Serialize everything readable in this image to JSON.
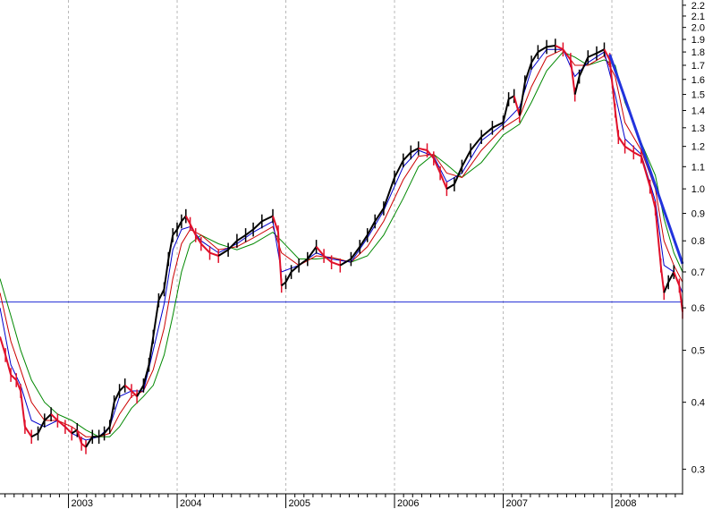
{
  "chart_data": {
    "type": "line",
    "scale": "log",
    "ylim": [
      0.27,
      2.25
    ],
    "xlim": [
      2002.37,
      2008.65
    ],
    "grid": {
      "vertical_dashed_at_years": true,
      "horizontal": false
    },
    "y_ticks": [
      {
        "value": 2.2,
        "label": "2.2"
      },
      {
        "value": 2.1,
        "label": "2.1"
      },
      {
        "value": 2.0,
        "label": "2.0"
      },
      {
        "value": 1.9,
        "label": "1.9"
      },
      {
        "value": 1.8,
        "label": "1.8"
      },
      {
        "value": 1.7,
        "label": "1.7"
      },
      {
        "value": 1.6,
        "label": "1.6"
      },
      {
        "value": 1.5,
        "label": "1.5"
      },
      {
        "value": 1.4,
        "label": "1.4"
      },
      {
        "value": 1.3,
        "label": "1.3"
      },
      {
        "value": 1.2,
        "label": "1.2"
      },
      {
        "value": 1.1,
        "label": "1.1"
      },
      {
        "value": 1.0,
        "label": "1.0"
      },
      {
        "value": 0.9,
        "label": "0.9"
      },
      {
        "value": 0.8,
        "label": "0.8"
      },
      {
        "value": 0.7,
        "label": "0.7"
      },
      {
        "value": 0.6,
        "label": "0.6"
      },
      {
        "value": 0.5,
        "label": "0.5"
      },
      {
        "value": 0.4,
        "label": "0.4"
      },
      {
        "value": 0.3,
        "label": "0.3"
      }
    ],
    "x_years": [
      {
        "value": 2003,
        "label": "2003"
      },
      {
        "value": 2004,
        "label": "2004"
      },
      {
        "value": 2005,
        "label": "2005"
      },
      {
        "value": 2006,
        "label": "2006"
      },
      {
        "value": 2007,
        "label": "2007"
      },
      {
        "value": 2008,
        "label": "2008"
      }
    ],
    "horizontal_line": {
      "value": 0.615,
      "color": "#1f2bd6"
    },
    "trend_line": {
      "points": [
        [
          2007.98,
          1.78
        ],
        [
          2008.65,
          0.725
        ]
      ],
      "color": "#2233dd"
    },
    "colors": {
      "price_up": "#000000",
      "price_down": "#e0102a",
      "ma_short": "#0000cc",
      "ma_mid": "#cc0000",
      "ma_long": "#008800"
    },
    "series": [
      {
        "type": "price",
        "values": [
          [
            2002.37,
            0.53
          ],
          [
            2002.42,
            0.49
          ],
          [
            2002.47,
            0.45
          ],
          [
            2002.52,
            0.44
          ],
          [
            2002.56,
            0.42
          ],
          [
            2002.6,
            0.36
          ],
          [
            2002.66,
            0.345
          ],
          [
            2002.72,
            0.35
          ],
          [
            2002.78,
            0.37
          ],
          [
            2002.84,
            0.38
          ],
          [
            2002.9,
            0.37
          ],
          [
            2002.97,
            0.36
          ],
          [
            2003.03,
            0.35
          ],
          [
            2003.08,
            0.355
          ],
          [
            2003.12,
            0.335
          ],
          [
            2003.16,
            0.33
          ],
          [
            2003.22,
            0.345
          ],
          [
            2003.28,
            0.345
          ],
          [
            2003.33,
            0.35
          ],
          [
            2003.38,
            0.36
          ],
          [
            2003.42,
            0.4
          ],
          [
            2003.47,
            0.42
          ],
          [
            2003.52,
            0.43
          ],
          [
            2003.58,
            0.42
          ],
          [
            2003.63,
            0.41
          ],
          [
            2003.69,
            0.43
          ],
          [
            2003.74,
            0.47
          ],
          [
            2003.78,
            0.53
          ],
          [
            2003.83,
            0.62
          ],
          [
            2003.88,
            0.65
          ],
          [
            2003.92,
            0.74
          ],
          [
            2003.96,
            0.82
          ],
          [
            2004.0,
            0.84
          ],
          [
            2004.04,
            0.87
          ],
          [
            2004.08,
            0.89
          ],
          [
            2004.12,
            0.86
          ],
          [
            2004.17,
            0.82
          ],
          [
            2004.22,
            0.79
          ],
          [
            2004.3,
            0.76
          ],
          [
            2004.38,
            0.75
          ],
          [
            2004.47,
            0.77
          ],
          [
            2004.55,
            0.8
          ],
          [
            2004.63,
            0.82
          ],
          [
            2004.7,
            0.84
          ],
          [
            2004.78,
            0.87
          ],
          [
            2004.88,
            0.89
          ],
          [
            2004.93,
            0.83
          ],
          [
            2004.96,
            0.66
          ],
          [
            2005.0,
            0.67
          ],
          [
            2005.05,
            0.7
          ],
          [
            2005.12,
            0.72
          ],
          [
            2005.2,
            0.74
          ],
          [
            2005.28,
            0.78
          ],
          [
            2005.35,
            0.75
          ],
          [
            2005.42,
            0.73
          ],
          [
            2005.5,
            0.72
          ],
          [
            2005.6,
            0.74
          ],
          [
            2005.68,
            0.78
          ],
          [
            2005.75,
            0.82
          ],
          [
            2005.82,
            0.87
          ],
          [
            2005.9,
            0.92
          ],
          [
            2006.0,
            1.05
          ],
          [
            2006.08,
            1.13
          ],
          [
            2006.15,
            1.17
          ],
          [
            2006.22,
            1.19
          ],
          [
            2006.3,
            1.18
          ],
          [
            2006.36,
            1.14
          ],
          [
            2006.42,
            1.07
          ],
          [
            2006.48,
            1.0
          ],
          [
            2006.55,
            1.02
          ],
          [
            2006.62,
            1.1
          ],
          [
            2006.7,
            1.18
          ],
          [
            2006.8,
            1.25
          ],
          [
            2006.9,
            1.3
          ],
          [
            2007.0,
            1.33
          ],
          [
            2007.05,
            1.47
          ],
          [
            2007.1,
            1.49
          ],
          [
            2007.15,
            1.37
          ],
          [
            2007.2,
            1.58
          ],
          [
            2007.26,
            1.72
          ],
          [
            2007.32,
            1.8
          ],
          [
            2007.4,
            1.84
          ],
          [
            2007.48,
            1.85
          ],
          [
            2007.55,
            1.82
          ],
          [
            2007.62,
            1.74
          ],
          [
            2007.66,
            1.5
          ],
          [
            2007.7,
            1.62
          ],
          [
            2007.78,
            1.76
          ],
          [
            2007.86,
            1.79
          ],
          [
            2007.93,
            1.82
          ],
          [
            2007.98,
            1.74
          ],
          [
            2008.03,
            1.4
          ],
          [
            2008.06,
            1.25
          ],
          [
            2008.12,
            1.2
          ],
          [
            2008.2,
            1.17
          ],
          [
            2008.27,
            1.15
          ],
          [
            2008.35,
            1.01
          ],
          [
            2008.4,
            0.92
          ],
          [
            2008.45,
            0.72
          ],
          [
            2008.48,
            0.64
          ],
          [
            2008.52,
            0.67
          ],
          [
            2008.57,
            0.7
          ],
          [
            2008.62,
            0.66
          ],
          [
            2008.65,
            0.59
          ]
        ]
      },
      {
        "type": "ma_short",
        "values": [
          [
            2002.37,
            0.6
          ],
          [
            2002.47,
            0.47
          ],
          [
            2002.56,
            0.43
          ],
          [
            2002.66,
            0.37
          ],
          [
            2002.78,
            0.36
          ],
          [
            2002.9,
            0.37
          ],
          [
            2003.03,
            0.35
          ],
          [
            2003.16,
            0.34
          ],
          [
            2003.28,
            0.345
          ],
          [
            2003.38,
            0.36
          ],
          [
            2003.47,
            0.41
          ],
          [
            2003.58,
            0.42
          ],
          [
            2003.69,
            0.42
          ],
          [
            2003.78,
            0.5
          ],
          [
            2003.88,
            0.61
          ],
          [
            2003.96,
            0.77
          ],
          [
            2004.04,
            0.84
          ],
          [
            2004.12,
            0.85
          ],
          [
            2004.22,
            0.8
          ],
          [
            2004.38,
            0.76
          ],
          [
            2004.55,
            0.79
          ],
          [
            2004.7,
            0.83
          ],
          [
            2004.88,
            0.87
          ],
          [
            2004.96,
            0.7
          ],
          [
            2005.12,
            0.72
          ],
          [
            2005.28,
            0.76
          ],
          [
            2005.42,
            0.74
          ],
          [
            2005.6,
            0.73
          ],
          [
            2005.75,
            0.81
          ],
          [
            2005.9,
            0.91
          ],
          [
            2006.08,
            1.1
          ],
          [
            2006.22,
            1.18
          ],
          [
            2006.36,
            1.15
          ],
          [
            2006.48,
            1.03
          ],
          [
            2006.62,
            1.07
          ],
          [
            2006.8,
            1.23
          ],
          [
            2007.0,
            1.32
          ],
          [
            2007.15,
            1.42
          ],
          [
            2007.26,
            1.67
          ],
          [
            2007.4,
            1.82
          ],
          [
            2007.55,
            1.82
          ],
          [
            2007.66,
            1.62
          ],
          [
            2007.78,
            1.72
          ],
          [
            2007.93,
            1.8
          ],
          [
            2008.03,
            1.5
          ],
          [
            2008.12,
            1.24
          ],
          [
            2008.27,
            1.16
          ],
          [
            2008.4,
            0.95
          ],
          [
            2008.48,
            0.72
          ],
          [
            2008.57,
            0.7
          ],
          [
            2008.65,
            0.64
          ]
        ]
      },
      {
        "type": "ma_mid",
        "values": [
          [
            2002.37,
            0.64
          ],
          [
            2002.47,
            0.52
          ],
          [
            2002.56,
            0.46
          ],
          [
            2002.66,
            0.4
          ],
          [
            2002.78,
            0.37
          ],
          [
            2002.9,
            0.37
          ],
          [
            2003.03,
            0.36
          ],
          [
            2003.16,
            0.345
          ],
          [
            2003.28,
            0.345
          ],
          [
            2003.38,
            0.35
          ],
          [
            2003.47,
            0.38
          ],
          [
            2003.58,
            0.41
          ],
          [
            2003.69,
            0.42
          ],
          [
            2003.78,
            0.46
          ],
          [
            2003.88,
            0.55
          ],
          [
            2003.96,
            0.68
          ],
          [
            2004.04,
            0.79
          ],
          [
            2004.12,
            0.84
          ],
          [
            2004.22,
            0.82
          ],
          [
            2004.38,
            0.77
          ],
          [
            2004.55,
            0.78
          ],
          [
            2004.7,
            0.81
          ],
          [
            2004.88,
            0.85
          ],
          [
            2004.96,
            0.76
          ],
          [
            2005.12,
            0.72
          ],
          [
            2005.28,
            0.75
          ],
          [
            2005.42,
            0.745
          ],
          [
            2005.6,
            0.73
          ],
          [
            2005.75,
            0.78
          ],
          [
            2005.9,
            0.87
          ],
          [
            2006.08,
            1.04
          ],
          [
            2006.22,
            1.15
          ],
          [
            2006.36,
            1.16
          ],
          [
            2006.48,
            1.07
          ],
          [
            2006.62,
            1.05
          ],
          [
            2006.8,
            1.18
          ],
          [
            2007.0,
            1.3
          ],
          [
            2007.15,
            1.36
          ],
          [
            2007.26,
            1.55
          ],
          [
            2007.4,
            1.76
          ],
          [
            2007.55,
            1.82
          ],
          [
            2007.66,
            1.7
          ],
          [
            2007.78,
            1.7
          ],
          [
            2007.93,
            1.77
          ],
          [
            2008.03,
            1.62
          ],
          [
            2008.12,
            1.33
          ],
          [
            2008.27,
            1.18
          ],
          [
            2008.4,
            1.0
          ],
          [
            2008.48,
            0.8
          ],
          [
            2008.57,
            0.72
          ],
          [
            2008.65,
            0.67
          ]
        ]
      },
      {
        "type": "ma_long",
        "values": [
          [
            2002.37,
            0.68
          ],
          [
            2002.47,
            0.58
          ],
          [
            2002.56,
            0.5
          ],
          [
            2002.66,
            0.44
          ],
          [
            2002.78,
            0.4
          ],
          [
            2002.9,
            0.38
          ],
          [
            2003.03,
            0.37
          ],
          [
            2003.16,
            0.355
          ],
          [
            2003.28,
            0.345
          ],
          [
            2003.38,
            0.345
          ],
          [
            2003.47,
            0.36
          ],
          [
            2003.58,
            0.39
          ],
          [
            2003.69,
            0.41
          ],
          [
            2003.78,
            0.43
          ],
          [
            2003.88,
            0.49
          ],
          [
            2003.96,
            0.58
          ],
          [
            2004.04,
            0.7
          ],
          [
            2004.12,
            0.79
          ],
          [
            2004.22,
            0.82
          ],
          [
            2004.38,
            0.79
          ],
          [
            2004.55,
            0.77
          ],
          [
            2004.7,
            0.79
          ],
          [
            2004.88,
            0.83
          ],
          [
            2004.96,
            0.8
          ],
          [
            2005.12,
            0.74
          ],
          [
            2005.28,
            0.74
          ],
          [
            2005.42,
            0.745
          ],
          [
            2005.6,
            0.73
          ],
          [
            2005.75,
            0.75
          ],
          [
            2005.9,
            0.82
          ],
          [
            2006.08,
            0.96
          ],
          [
            2006.22,
            1.1
          ],
          [
            2006.36,
            1.16
          ],
          [
            2006.48,
            1.11
          ],
          [
            2006.62,
            1.05
          ],
          [
            2006.8,
            1.12
          ],
          [
            2007.0,
            1.26
          ],
          [
            2007.15,
            1.32
          ],
          [
            2007.26,
            1.45
          ],
          [
            2007.4,
            1.66
          ],
          [
            2007.55,
            1.8
          ],
          [
            2007.66,
            1.76
          ],
          [
            2007.78,
            1.7
          ],
          [
            2007.93,
            1.74
          ],
          [
            2008.03,
            1.7
          ],
          [
            2008.12,
            1.45
          ],
          [
            2008.27,
            1.22
          ],
          [
            2008.4,
            1.06
          ],
          [
            2008.48,
            0.88
          ],
          [
            2008.57,
            0.76
          ],
          [
            2008.65,
            0.7
          ]
        ]
      }
    ]
  }
}
